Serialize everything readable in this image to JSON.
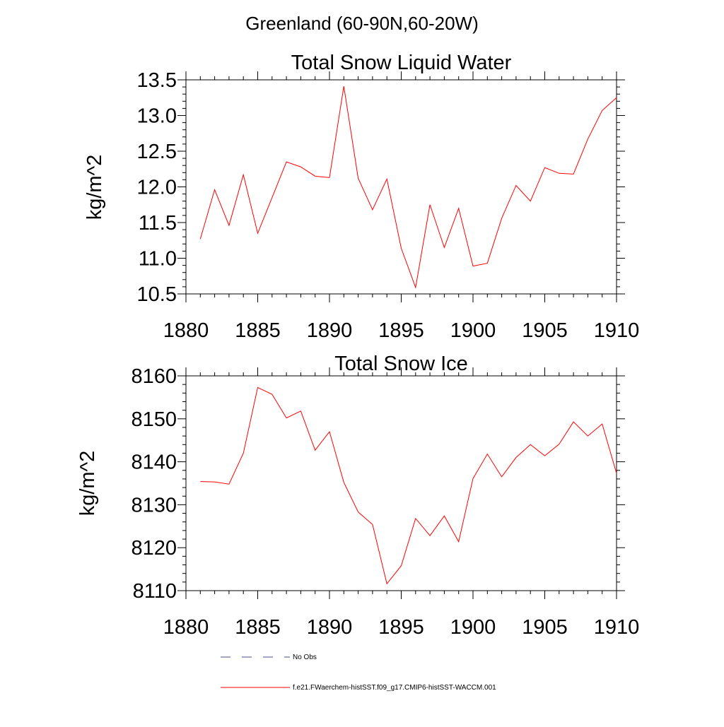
{
  "figure_title": "Greenland (60-90N,60-20W)",
  "colors": {
    "model_line": "#ff0000",
    "obs_line": "#4b4b8c",
    "axes": "#000000"
  },
  "legend": {
    "obs_label": "No Obs",
    "model_label": "f.e21.FWaerchem-histSST.f09_g17.CMIP6-histSST-WACCM.001"
  },
  "chart_data": [
    {
      "type": "line",
      "title": "Total Snow Liquid Water",
      "xlabel": "",
      "ylabel": "kg/m^2",
      "xlim": [
        1880,
        1910
      ],
      "ylim": [
        10.5,
        13.5
      ],
      "x_ticks": [
        "1880",
        "1885",
        "1890",
        "1895",
        "1900",
        "1905",
        "1910"
      ],
      "y_ticks": [
        "10.5",
        "11.0",
        "11.5",
        "12.0",
        "12.5",
        "13.0",
        "13.5"
      ],
      "series": [
        {
          "name": "f.e21.FWaerchem-histSST.f09_g17.CMIP6-histSST-WACCM.001",
          "x": [
            1881,
            1882,
            1883,
            1884,
            1885,
            1886,
            1887,
            1888,
            1889,
            1890,
            1891,
            1892,
            1893,
            1894,
            1895,
            1896,
            1897,
            1898,
            1899,
            1900,
            1901,
            1902,
            1903,
            1904,
            1905,
            1906,
            1907,
            1908,
            1909,
            1910
          ],
          "y": [
            11.27,
            11.96,
            11.46,
            12.17,
            11.35,
            11.85,
            12.35,
            12.28,
            12.15,
            12.13,
            13.41,
            12.12,
            11.68,
            12.11,
            11.14,
            10.59,
            11.75,
            11.15,
            11.7,
            10.89,
            10.93,
            11.56,
            12.02,
            11.8,
            12.27,
            12.19,
            12.18,
            12.67,
            13.07,
            13.25
          ]
        }
      ]
    },
    {
      "type": "line",
      "title": "Total Snow Ice",
      "xlabel": "",
      "ylabel": "kg/m^2",
      "xlim": [
        1880,
        1910
      ],
      "ylim": [
        8110,
        8160
      ],
      "x_ticks": [
        "1880",
        "1885",
        "1890",
        "1895",
        "1900",
        "1905",
        "1910"
      ],
      "y_ticks": [
        "8110",
        "8120",
        "8130",
        "8140",
        "8150",
        "8160"
      ],
      "series": [
        {
          "name": "f.e21.FWaerchem-histSST.f09_g17.CMIP6-histSST-WACCM.001",
          "x": [
            1881,
            1882,
            1883,
            1884,
            1885,
            1886,
            1887,
            1888,
            1889,
            1890,
            1891,
            1892,
            1893,
            1894,
            1895,
            1896,
            1897,
            1898,
            1899,
            1900,
            1901,
            1902,
            1903,
            1904,
            1905,
            1906,
            1907,
            1908,
            1909,
            1910
          ],
          "y": [
            8135.4,
            8135.3,
            8134.8,
            8142.0,
            8157.3,
            8155.7,
            8150.2,
            8151.8,
            8142.7,
            8147.0,
            8135.2,
            8128.3,
            8125.4,
            8111.6,
            8115.8,
            8126.8,
            8122.8,
            8127.4,
            8121.4,
            8136.1,
            8141.8,
            8136.5,
            8141.0,
            8144.0,
            8141.4,
            8144.1,
            8149.3,
            8146.0,
            8148.8,
            8137.3
          ]
        }
      ]
    }
  ]
}
